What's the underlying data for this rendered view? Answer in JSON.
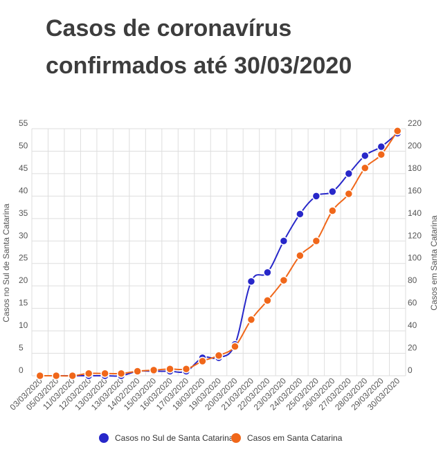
{
  "title_lines": [
    "Casos de coronavírus",
    "confirmados até 30/03/2020"
  ],
  "chart_data": {
    "type": "line",
    "title": "Casos de coronavírus confirmados até 30/03/2020",
    "categories": [
      "03/03/2020",
      "05/03/2020",
      "11/03/2020",
      "12/03/2020",
      "13/03/2020",
      "13/03/2020",
      "14/02/2020",
      "15/03/2020",
      "16/03/2020",
      "17/03/2020",
      "18/03/2020",
      "19/03/2020",
      "20/03/2020",
      "21/03/2020",
      "22/03/2020",
      "23/03/2020",
      "24/03/2020",
      "25/03/2020",
      "26/03/2020",
      "27/03/2020",
      "28/03/2020",
      "29/03/2020",
      "30/03/2020"
    ],
    "y_left": {
      "label": "Casos no Sul de Santa Catarina",
      "ticks": [
        0,
        5,
        10,
        15,
        20,
        25,
        30,
        35,
        40,
        45,
        50,
        55
      ],
      "range": [
        0,
        55
      ]
    },
    "y_right": {
      "label": "Casos em Santa Catarina",
      "ticks": [
        0,
        20,
        40,
        60,
        80,
        100,
        120,
        140,
        160,
        180,
        200,
        220
      ],
      "range": [
        0,
        220
      ]
    },
    "grid": true,
    "legend_position": "bottom",
    "series": [
      {
        "name": "Casos no Sul de Santa Catarina",
        "axis": "left",
        "color": "#2727c9",
        "values": [
          0,
          0,
          0,
          0,
          0,
          0,
          1,
          1,
          1,
          1,
          4,
          4,
          7,
          21,
          23,
          30,
          36,
          40,
          41,
          45,
          49,
          51,
          54
        ]
      },
      {
        "name": "Casos em Santa Catarina",
        "axis": "right",
        "color": "#f0671a",
        "values": [
          0,
          0,
          0,
          2,
          2,
          2,
          4,
          5,
          6,
          6,
          13,
          18,
          26,
          50,
          67,
          85,
          107,
          120,
          147,
          162,
          185,
          197,
          218
        ]
      }
    ]
  }
}
